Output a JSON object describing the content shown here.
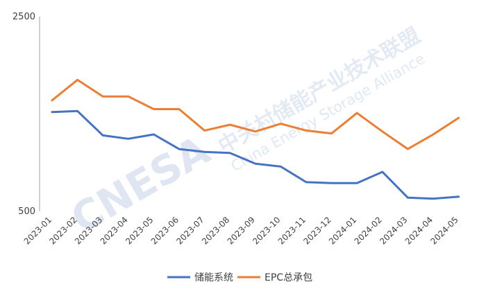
{
  "chart_data": {
    "type": "line",
    "title": "",
    "xlabel": "",
    "ylabel": "",
    "ylim": [
      500,
      2500
    ],
    "yticks": [
      500,
      2500
    ],
    "categories": [
      "2023-01",
      "2023-02",
      "2023-03",
      "2023-04",
      "2023-05",
      "2023-06",
      "2023-07",
      "2023-08",
      "2023-09",
      "2023-10",
      "2023-11",
      "2023-12",
      "2024-01",
      "2024-02",
      "2024-03",
      "2024-04",
      "2024-05"
    ],
    "series": [
      {
        "name": "储能系统",
        "color": "#4472c4",
        "values": [
          1520,
          1530,
          1280,
          1245,
          1290,
          1140,
          1110,
          1100,
          990,
          960,
          800,
          790,
          790,
          905,
          640,
          630,
          650
        ]
      },
      {
        "name": "EPC总承包",
        "color": "#ed7d31",
        "values": [
          1640,
          1850,
          1680,
          1680,
          1550,
          1550,
          1330,
          1390,
          1320,
          1400,
          1330,
          1300,
          1510,
          1320,
          1140,
          1290,
          1460
        ]
      }
    ],
    "grid": false,
    "legend": "bottom-center"
  },
  "watermark": {
    "logo": "CNESA",
    "cn": "中关村储能产业技术联盟",
    "en": "China Energy Storage Alliance"
  }
}
